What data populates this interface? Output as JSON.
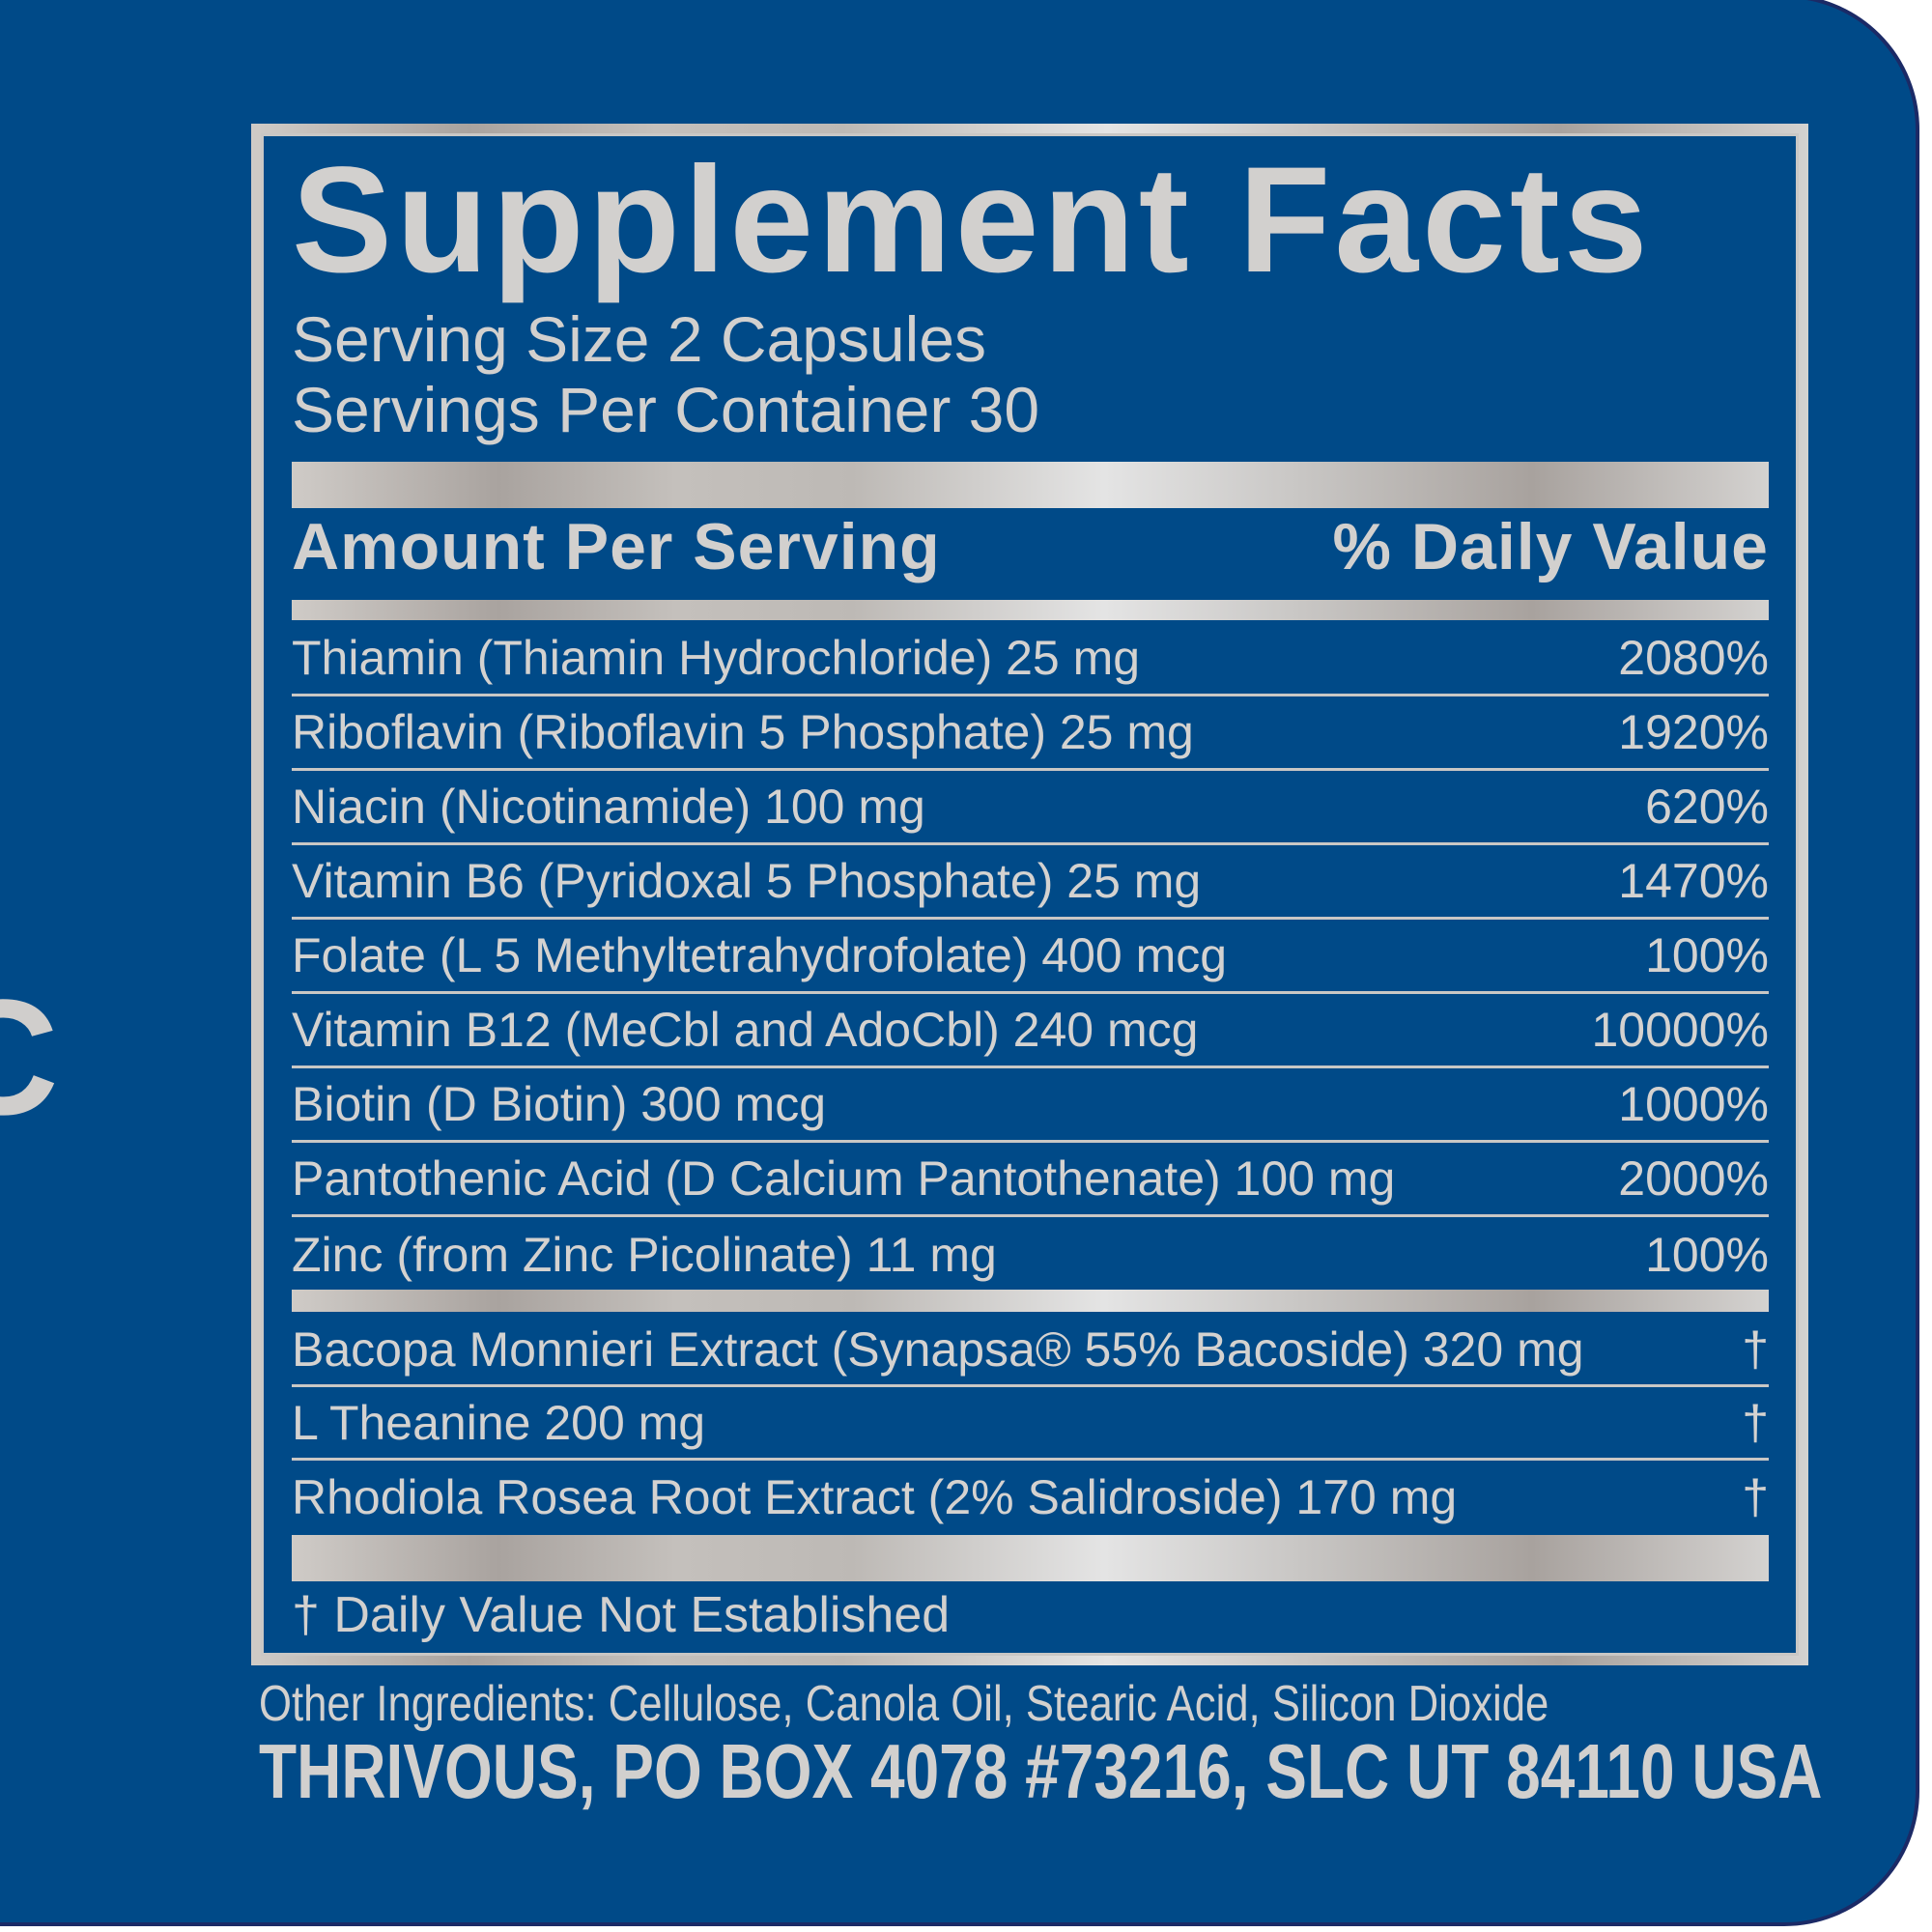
{
  "side_letter": "C",
  "colors": {
    "background": "#004a88",
    "silver": "#d2d0ce"
  },
  "title": "Supplement Facts",
  "serving_size": "Serving Size 2 Capsules",
  "servings_per_container": "Servings Per Container 30",
  "header": {
    "amount": "Amount Per Serving",
    "dv": "% Daily Value"
  },
  "vitamins": [
    {
      "name": "Thiamin (Thiamin Hydrochloride) 25 mg",
      "dv": "2080%"
    },
    {
      "name": "Riboflavin (Riboflavin 5 Phosphate) 25 mg",
      "dv": "1920%"
    },
    {
      "name": "Niacin (Nicotinamide) 100 mg",
      "dv": "620%"
    },
    {
      "name": "Vitamin B6 (Pyridoxal 5 Phosphate) 25 mg",
      "dv": "1470%"
    },
    {
      "name": "Folate (L 5 Methyltetrahydrofolate) 400 mcg",
      "dv": "100%"
    },
    {
      "name": "Vitamin B12 (MeCbl and AdoCbl) 240 mcg",
      "dv": "10000%"
    },
    {
      "name": "Biotin (D Biotin) 300 mcg",
      "dv": "1000%"
    },
    {
      "name": "Pantothenic Acid (D Calcium Pantothenate) 100 mg",
      "dv": "2000%"
    },
    {
      "name": "Zinc (from Zinc Picolinate) 11 mg",
      "dv": "100%"
    }
  ],
  "others": [
    {
      "name": "Bacopa Monnieri Extract (Synapsa® 55% Bacoside) 320 mg",
      "dv": "†"
    },
    {
      "name": "L Theanine 200 mg",
      "dv": "†"
    },
    {
      "name": "Rhodiola Rosea Root Extract (2% Salidroside) 170 mg",
      "dv": "†"
    }
  ],
  "footnote": "† Daily Value Not Established",
  "other_ingredients": "Other Ingredients: Cellulose, Canola Oil, Stearic Acid, Silicon Dioxide",
  "address": "THRIVOUS, PO BOX 4078 #73216, SLC UT 84110 USA"
}
